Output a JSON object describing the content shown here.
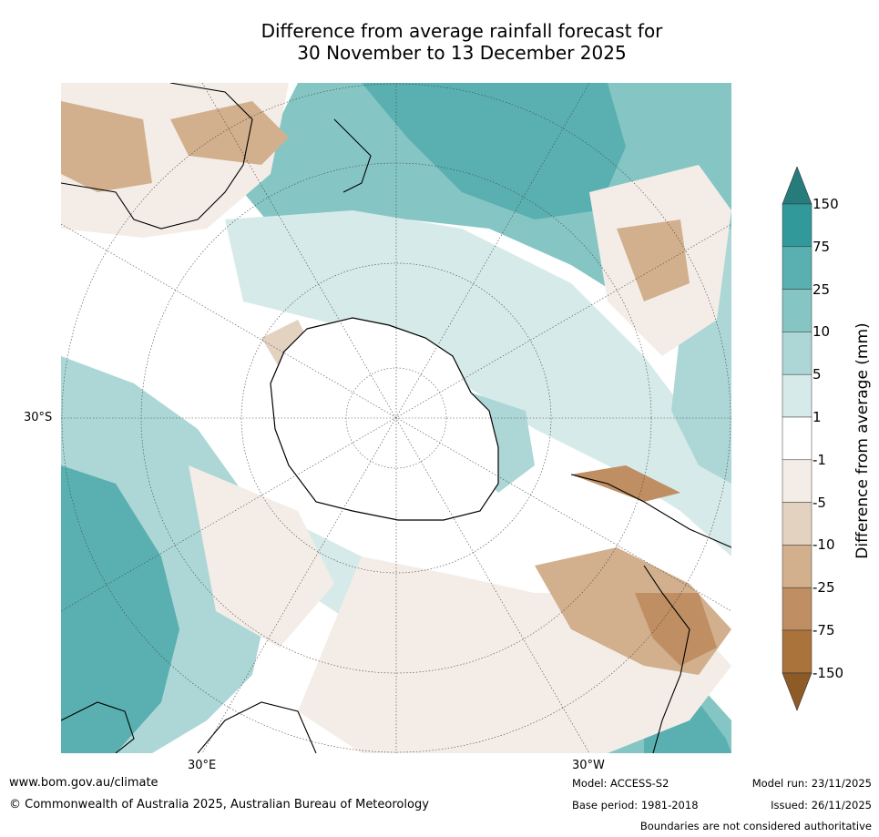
{
  "title": {
    "line1": "Difference from average rainfall forecast for",
    "line2": "30 November to 13 December 2025"
  },
  "map": {
    "lat_label": "30°S",
    "lon_labels": {
      "east": "30°E",
      "west": "30°W"
    }
  },
  "legend": {
    "label": "Difference from average (mm)",
    "ticks": [
      "150",
      "75",
      "25",
      "10",
      "5",
      "1",
      "-1",
      "-5",
      "-10",
      "-25",
      "-75",
      "-150"
    ],
    "colors": {
      "above_150": "#267c7b",
      "75_150": "#32999a",
      "25_75": "#5ab0b0",
      "10_25": "#85c6c4",
      "5_10": "#acd7d6",
      "1_5": "#d6eae9",
      "-1_1": "#ffffff",
      "-5_-1": "#f4ede7",
      "-10_-5": "#e4d2c1",
      "-25_-10": "#d2b08e",
      "-75_-25": "#bf8e62",
      "-150_-75": "#aa733c",
      "below_-150": "#8e5a25"
    }
  },
  "footer": {
    "website": "www.bom.gov.au/climate",
    "copyright": "© Commonwealth of Australia 2025, Australian Bureau of Meteorology",
    "model": "Model: ACCESS-S2",
    "base_period": "Base period: 1981-2018",
    "model_run": "Model run: 23/11/2025",
    "issued": "Issued: 26/11/2025",
    "disclaimer": "Boundaries are not considered authoritative"
  }
}
